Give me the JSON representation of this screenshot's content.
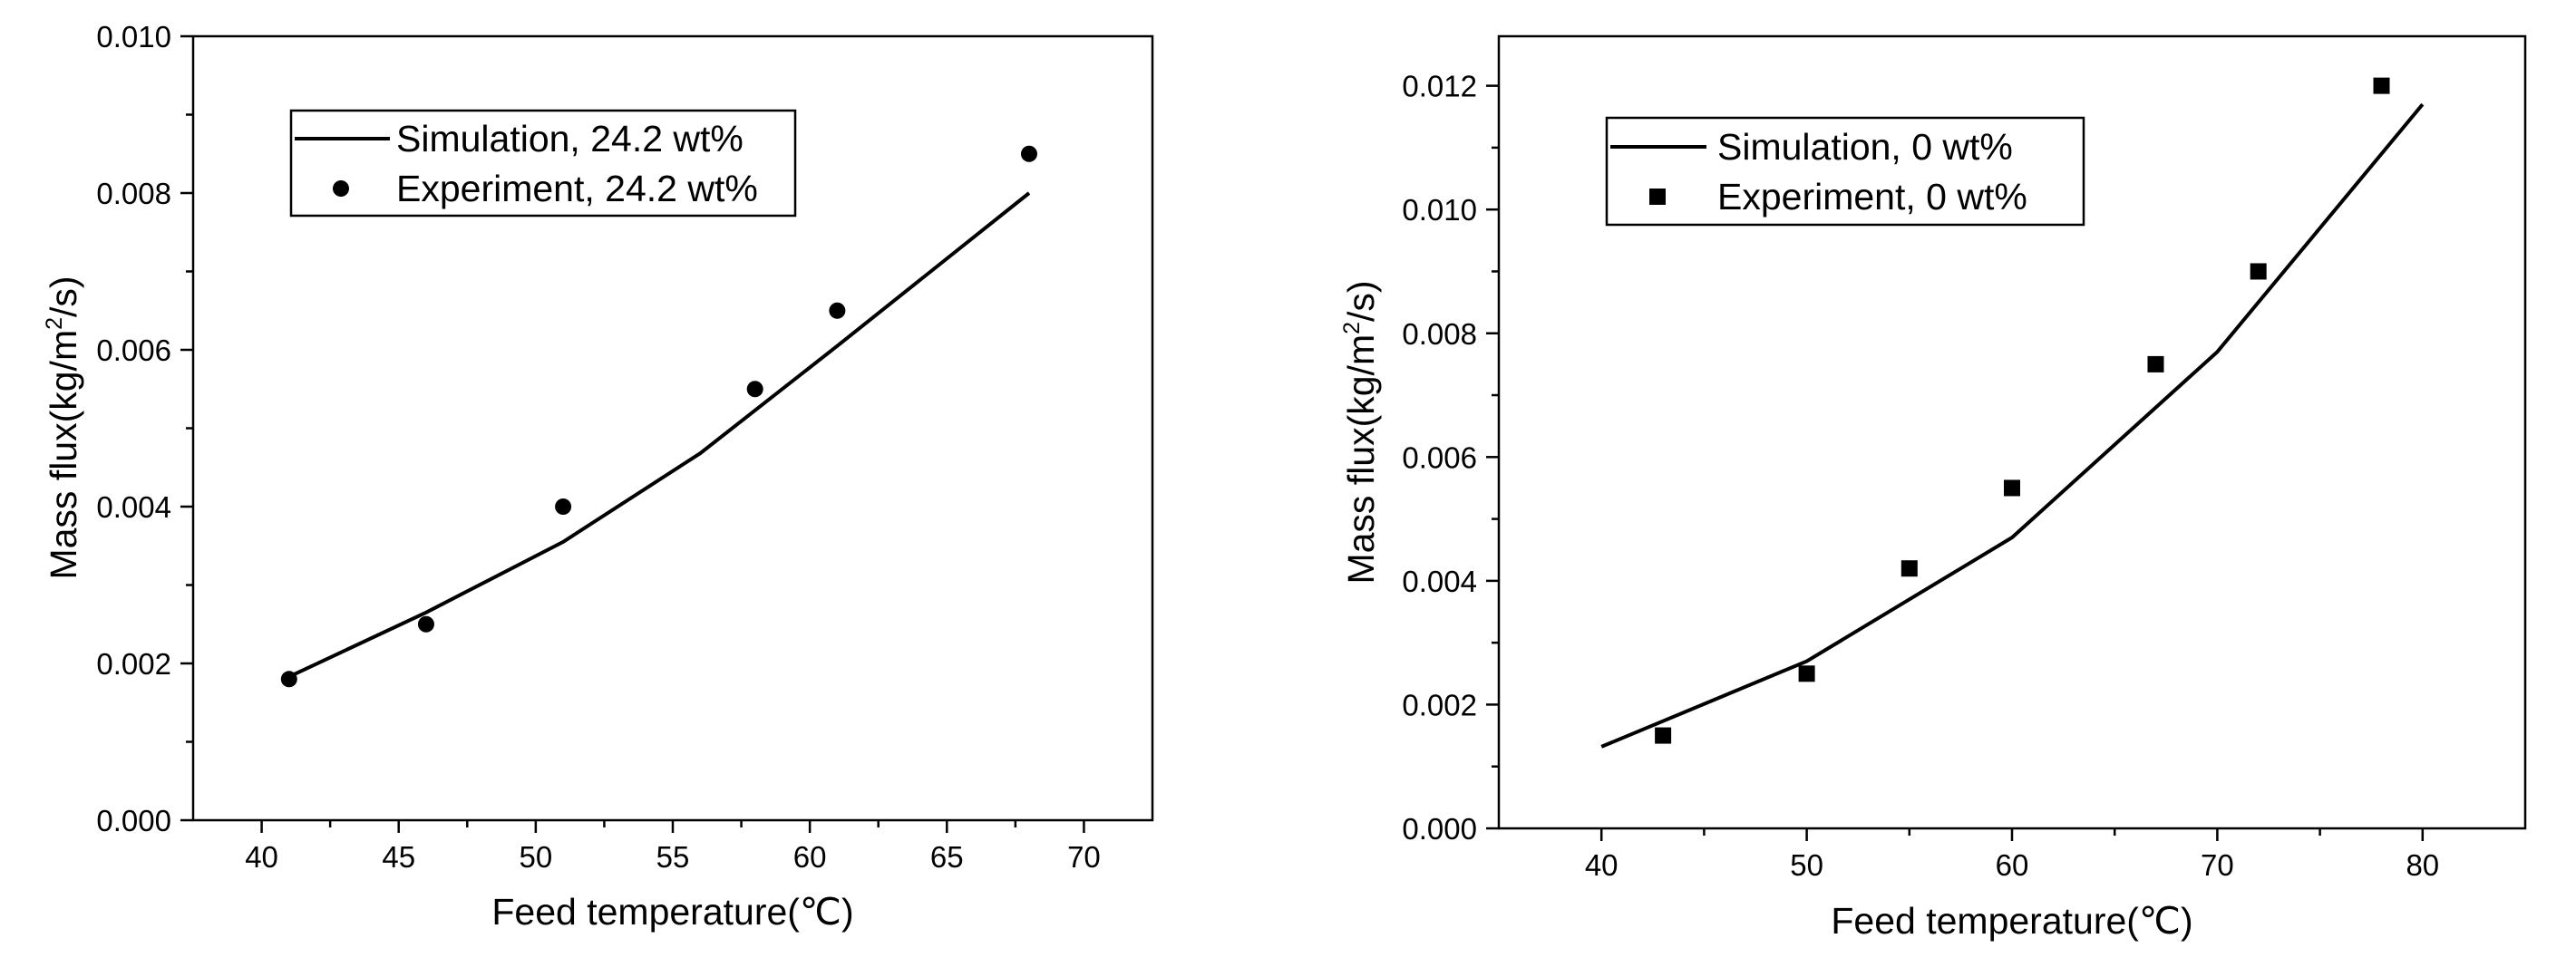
{
  "chart_data": [
    {
      "type": "line+scatter",
      "xlabel": "Feed temperature(℃)",
      "ylabel_prefix": "Mass flux(kg/m",
      "ylabel_sup": "2",
      "ylabel_suffix": "/s)",
      "xlim": [
        37.5,
        72.5
      ],
      "ylim": [
        0.0,
        0.01
      ],
      "xticks": [
        40,
        45,
        50,
        55,
        60,
        65,
        70
      ],
      "xtick_labels": [
        "40",
        "45",
        "50",
        "55",
        "60",
        "65",
        "70"
      ],
      "yticks": [
        0.0,
        0.002,
        0.004,
        0.006,
        0.008,
        0.01
      ],
      "ytick_labels": [
        "0.000",
        "0.002",
        "0.004",
        "0.006",
        "0.008",
        "0.010"
      ],
      "legend_position": "top-left",
      "series": [
        {
          "name": "Simulation, 24.2 wt%",
          "kind": "line",
          "x": [
            41,
            46,
            51,
            56,
            61,
            68
          ],
          "y": [
            0.00183,
            0.00265,
            0.00355,
            0.00468,
            0.00605,
            0.008
          ]
        },
        {
          "name": "Experiment, 24.2 wt%",
          "kind": "scatter",
          "marker": "circle",
          "x": [
            41,
            46,
            51,
            58,
            61,
            68
          ],
          "y": [
            0.0018,
            0.0025,
            0.004,
            0.0055,
            0.0065,
            0.0085
          ]
        }
      ]
    },
    {
      "type": "line+scatter",
      "xlabel": "Feed temperature(℃)",
      "ylabel_prefix": "Mass flux(kg/m",
      "ylabel_sup": "2",
      "ylabel_suffix": "/s)",
      "xlim": [
        35,
        85
      ],
      "ylim": [
        0.0,
        0.0128
      ],
      "xticks": [
        40,
        50,
        60,
        70,
        80
      ],
      "xtick_labels": [
        "40",
        "50",
        "60",
        "70",
        "80"
      ],
      "yticks": [
        0.0,
        0.002,
        0.004,
        0.006,
        0.008,
        0.01,
        0.012
      ],
      "ytick_labels": [
        "0.000",
        "0.002",
        "0.004",
        "0.006",
        "0.008",
        "0.010",
        "0.012"
      ],
      "legend_position": "top-left",
      "series": [
        {
          "name": "Simulation, 0 wt%",
          "kind": "line",
          "x": [
            40,
            50,
            60,
            70,
            80
          ],
          "y": [
            0.00132,
            0.0027,
            0.0047,
            0.0077,
            0.0117
          ]
        },
        {
          "name": "Experiment, 0 wt%",
          "kind": "scatter",
          "marker": "square",
          "x": [
            43,
            50,
            55,
            60,
            67,
            72,
            78
          ],
          "y": [
            0.0015,
            0.0025,
            0.0042,
            0.0055,
            0.0075,
            0.009,
            0.012
          ]
        }
      ]
    }
  ]
}
